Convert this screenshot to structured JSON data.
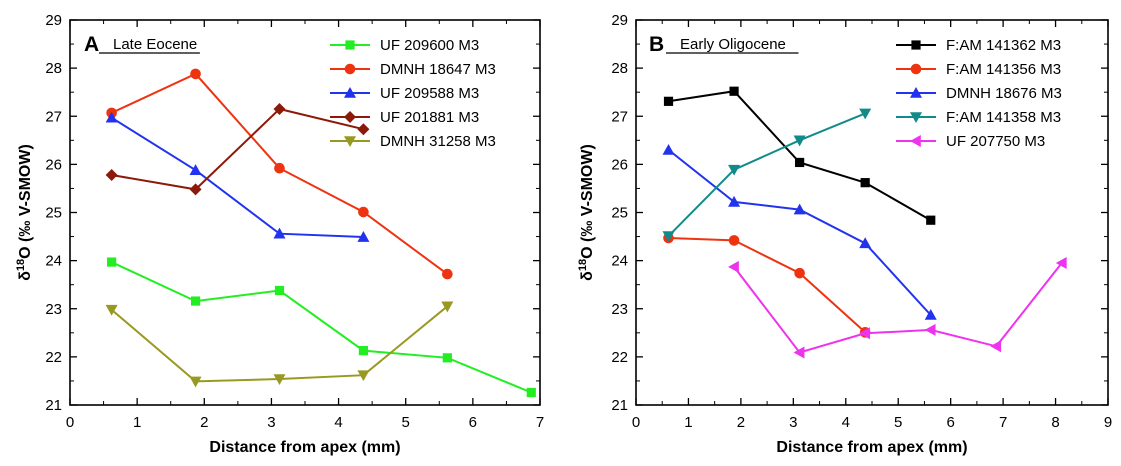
{
  "chart_data": [
    {
      "type": "line",
      "panel": "A",
      "label": "Late Eocene",
      "xlabel": "Distance from apex (mm)",
      "ylabel": "δ18O (‰ V-SMOW)",
      "ylabel_parts": {
        "delta": "δ",
        "sup": "18",
        "rest": "O (‰ V-SMOW)"
      },
      "xlim": [
        0,
        7
      ],
      "ylim": [
        21,
        29
      ],
      "xticks": [
        "0",
        "1",
        "2",
        "3",
        "4",
        "5",
        "6",
        "7"
      ],
      "yticks": [
        "21",
        "22",
        "23",
        "24",
        "25",
        "26",
        "27",
        "28",
        "29"
      ],
      "grid": false,
      "legend_position": "top-right",
      "series": [
        {
          "name": "UF 209600 M3",
          "color": "#22ee22",
          "marker": "square",
          "x": [
            0.62,
            1.87,
            3.12,
            4.37,
            5.62,
            6.87
          ],
          "y": [
            23.97,
            23.16,
            23.38,
            22.13,
            21.98,
            21.26
          ]
        },
        {
          "name": "DMNH 18647 M3",
          "color": "#ee3311",
          "marker": "circle",
          "x": [
            0.62,
            1.87,
            3.12,
            4.37,
            5.62
          ],
          "y": [
            27.07,
            27.88,
            25.92,
            25.01,
            23.72
          ]
        },
        {
          "name": "UF 209588 M3",
          "color": "#2233ee",
          "marker": "triangle-up",
          "x": [
            0.62,
            1.87,
            3.12,
            4.37
          ],
          "y": [
            26.97,
            25.88,
            24.56,
            24.49
          ]
        },
        {
          "name": "UF 201881 M3",
          "color": "#8b1a0a",
          "marker": "diamond",
          "x": [
            0.62,
            1.87,
            3.12,
            4.37
          ],
          "y": [
            25.78,
            25.48,
            27.15,
            26.73
          ]
        },
        {
          "name": "DMNH 31258 M3",
          "color": "#999922",
          "marker": "triangle-down",
          "x": [
            0.62,
            1.87,
            3.12,
            4.37,
            5.62
          ],
          "y": [
            22.98,
            21.49,
            21.54,
            21.62,
            23.05
          ]
        }
      ]
    },
    {
      "type": "line",
      "panel": "B",
      "label": "Early Oligocene",
      "xlabel": "Distance from apex (mm)",
      "ylabel": "δ18O (‰ V-SMOW)",
      "ylabel_parts": {
        "delta": "δ",
        "sup": "18",
        "rest": "O (‰ V-SMOW)"
      },
      "xlim": [
        0,
        9
      ],
      "ylim": [
        21,
        29
      ],
      "xticks": [
        "0",
        "1",
        "2",
        "3",
        "4",
        "5",
        "6",
        "7",
        "8",
        "9"
      ],
      "yticks": [
        "21",
        "22",
        "23",
        "24",
        "25",
        "26",
        "27",
        "28",
        "29"
      ],
      "grid": false,
      "legend_position": "top-right",
      "series": [
        {
          "name": "F:AM 141362 M3",
          "color": "#000000",
          "marker": "square",
          "x": [
            0.62,
            1.87,
            3.12,
            4.37,
            5.62
          ],
          "y": [
            27.31,
            27.52,
            26.04,
            25.62,
            24.84
          ]
        },
        {
          "name": "F:AM 141356 M3",
          "color": "#ee3311",
          "marker": "circle",
          "x": [
            0.62,
            1.87,
            3.12,
            4.37
          ],
          "y": [
            24.47,
            24.42,
            23.74,
            22.51
          ]
        },
        {
          "name": "DMNH 18676 M3",
          "color": "#2233ee",
          "marker": "triangle-up",
          "x": [
            0.62,
            1.87,
            3.12,
            4.37,
            5.62
          ],
          "y": [
            26.3,
            25.22,
            25.06,
            24.36,
            22.87
          ]
        },
        {
          "name": "F:AM 141358 M3",
          "color": "#118a8a",
          "marker": "triangle-down",
          "x": [
            0.62,
            1.87,
            3.12,
            4.37
          ],
          "y": [
            24.51,
            25.89,
            26.5,
            27.06
          ]
        },
        {
          "name": "UF 207750 M3",
          "color": "#ee33ee",
          "marker": "triangle-left",
          "x": [
            1.87,
            3.12,
            4.37,
            5.62,
            6.87,
            8.12
          ],
          "y": [
            23.87,
            22.09,
            22.49,
            22.56,
            22.22,
            23.95
          ]
        }
      ]
    }
  ]
}
